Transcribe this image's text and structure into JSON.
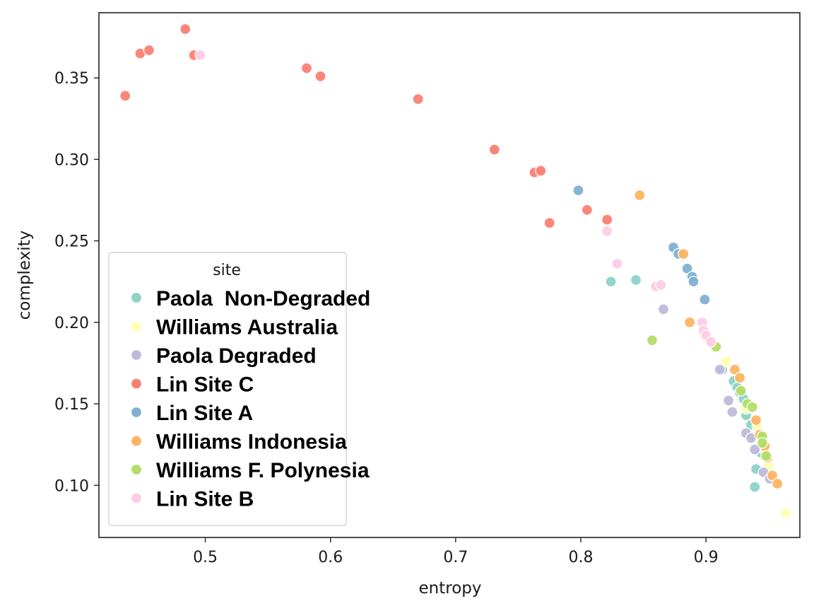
{
  "chart_data": {
    "type": "scatter",
    "xlabel": "entropy",
    "ylabel": "complexity",
    "xlim": [
      0.415,
      0.975
    ],
    "ylim": [
      0.068,
      0.39
    ],
    "xticks": [
      0.5,
      0.6,
      0.7,
      0.8,
      0.9
    ],
    "xtick_labels": [
      "0.5",
      "0.6",
      "0.7",
      "0.8",
      "0.9"
    ],
    "yticks": [
      0.1,
      0.15,
      0.2,
      0.25,
      0.3,
      0.35
    ],
    "ytick_labels": [
      "0.10",
      "0.15",
      "0.20",
      "0.25",
      "0.30",
      "0.35"
    ],
    "grid": false,
    "legend": {
      "title": "site",
      "position": "lower-left"
    },
    "series": [
      {
        "name": "Paola  Non-Degraded",
        "color": "#8dd3c7",
        "points": [
          [
            0.824,
            0.225
          ],
          [
            0.844,
            0.226
          ],
          [
            0.913,
            0.171
          ],
          [
            0.922,
            0.164
          ],
          [
            0.925,
            0.16
          ],
          [
            0.927,
            0.157
          ],
          [
            0.93,
            0.153
          ],
          [
            0.932,
            0.143
          ],
          [
            0.936,
            0.137
          ],
          [
            0.94,
            0.11
          ],
          [
            0.939,
            0.099
          ],
          [
            0.944,
            0.12
          ]
        ]
      },
      {
        "name": "Williams Australia",
        "color": "#ffffb3",
        "points": [
          [
            0.916,
            0.176
          ],
          [
            0.932,
            0.147
          ],
          [
            0.941,
            0.136
          ],
          [
            0.947,
            0.122
          ],
          [
            0.95,
            0.112
          ],
          [
            0.964,
            0.083
          ]
        ]
      },
      {
        "name": "Paola Degraded",
        "color": "#bebada",
        "points": [
          [
            0.866,
            0.208
          ],
          [
            0.911,
            0.171
          ],
          [
            0.918,
            0.152
          ],
          [
            0.921,
            0.145
          ],
          [
            0.932,
            0.132
          ],
          [
            0.936,
            0.129
          ],
          [
            0.939,
            0.122
          ],
          [
            0.946,
            0.108
          ],
          [
            0.951,
            0.104
          ]
        ]
      },
      {
        "name": "Lin Site C",
        "color": "#fb8072",
        "points": [
          [
            0.436,
            0.339
          ],
          [
            0.448,
            0.365
          ],
          [
            0.455,
            0.367
          ],
          [
            0.484,
            0.38
          ],
          [
            0.491,
            0.364
          ],
          [
            0.581,
            0.356
          ],
          [
            0.592,
            0.351
          ],
          [
            0.67,
            0.337
          ],
          [
            0.731,
            0.306
          ],
          [
            0.763,
            0.292
          ],
          [
            0.768,
            0.293
          ],
          [
            0.775,
            0.261
          ],
          [
            0.805,
            0.269
          ],
          [
            0.821,
            0.263
          ]
        ]
      },
      {
        "name": "Lin Site A",
        "color": "#80b1d3",
        "points": [
          [
            0.798,
            0.281
          ],
          [
            0.874,
            0.246
          ],
          [
            0.878,
            0.242
          ],
          [
            0.885,
            0.233
          ],
          [
            0.889,
            0.228
          ],
          [
            0.89,
            0.225
          ],
          [
            0.899,
            0.214
          ]
        ]
      },
      {
        "name": "Williams Indonesia",
        "color": "#fdb462",
        "points": [
          [
            0.847,
            0.278
          ],
          [
            0.882,
            0.242
          ],
          [
            0.887,
            0.2
          ],
          [
            0.923,
            0.171
          ],
          [
            0.927,
            0.166
          ],
          [
            0.94,
            0.14
          ],
          [
            0.943,
            0.131
          ],
          [
            0.947,
            0.124
          ],
          [
            0.949,
            0.117
          ],
          [
            0.953,
            0.106
          ],
          [
            0.957,
            0.101
          ]
        ]
      },
      {
        "name": "Williams F. Polynesia",
        "color": "#b3de69",
        "points": [
          [
            0.857,
            0.189
          ],
          [
            0.908,
            0.185
          ],
          [
            0.928,
            0.158
          ],
          [
            0.933,
            0.15
          ],
          [
            0.937,
            0.148
          ],
          [
            0.945,
            0.13
          ],
          [
            0.945,
            0.126
          ],
          [
            0.948,
            0.118
          ]
        ]
      },
      {
        "name": "Lin Site B",
        "color": "#fccde5",
        "points": [
          [
            0.496,
            0.364
          ],
          [
            0.821,
            0.256
          ],
          [
            0.829,
            0.236
          ],
          [
            0.86,
            0.222
          ],
          [
            0.864,
            0.223
          ],
          [
            0.897,
            0.2
          ],
          [
            0.898,
            0.195
          ],
          [
            0.9,
            0.192
          ],
          [
            0.904,
            0.188
          ]
        ]
      }
    ]
  }
}
